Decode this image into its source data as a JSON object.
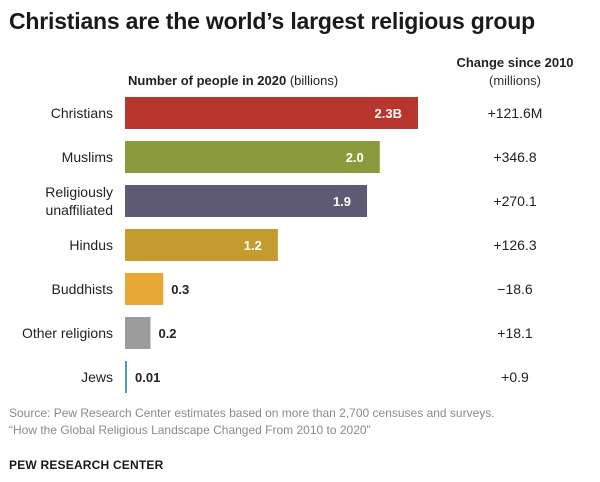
{
  "title": "Christians are the world’s largest religious group",
  "value_header": {
    "bold": "Number of people in 2020",
    "unit": " (billions)"
  },
  "change_header": {
    "title": "Change since 2010",
    "unit": "(millions)"
  },
  "chart_data": {
    "type": "bar",
    "orientation": "horizontal",
    "categories": [
      "Christians",
      "Muslims",
      "Religiously unaffiliated",
      "Hindus",
      "Buddhists",
      "Other religions",
      "Jews"
    ],
    "category_lines": [
      [
        "Christians"
      ],
      [
        "Muslims"
      ],
      [
        "Religiously",
        "unaffiliated"
      ],
      [
        "Hindus"
      ],
      [
        "Buddhists"
      ],
      [
        "Other religions"
      ],
      [
        "Jews"
      ]
    ],
    "values": [
      2.3,
      2.0,
      1.9,
      1.2,
      0.3,
      0.2,
      0.01
    ],
    "value_labels": [
      "2.3B",
      "2.0",
      "1.9",
      "1.2",
      "0.3",
      "0.2",
      "0.01"
    ],
    "change_labels": [
      "+121.6M",
      "+346.8",
      "+270.1",
      "+126.3",
      "−18.6",
      "+18.1",
      "+0.9"
    ],
    "colors": [
      "#b8362e",
      "#8a9a3c",
      "#5e5a73",
      "#c39b2e",
      "#e8a833",
      "#9b9b9b",
      "#4b9bb8"
    ],
    "xlim": [
      0,
      2.3
    ],
    "grid": false
  },
  "source_lines": [
    "Source: Pew Research Center estimates based on more than 2,700 censuses and surveys.",
    "“How the Global Religious Landscape Changed From 2010 to 2020”"
  ],
  "brand": "PEW RESEARCH CENTER"
}
